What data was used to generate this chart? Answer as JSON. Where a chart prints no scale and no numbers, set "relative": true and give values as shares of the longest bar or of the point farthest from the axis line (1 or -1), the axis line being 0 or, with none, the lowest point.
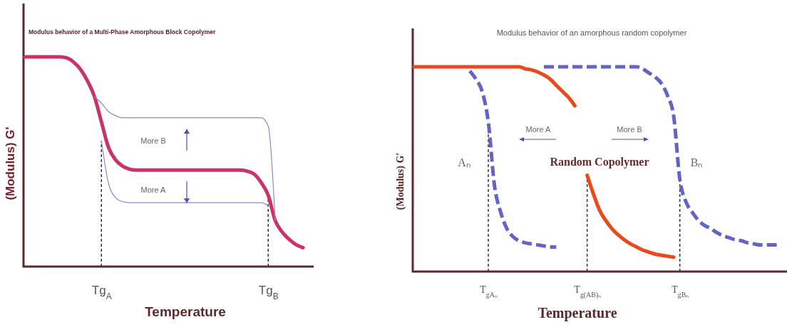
{
  "chart_data": [
    {
      "type": "line",
      "relative": true,
      "title": "Modulus behavior of a Multi-Phase Amorphous Block Copolymer",
      "xlabel": "Temperature",
      "ylabel": "(Modulus) G'",
      "tick_labels": "x",
      "line_style": "solid",
      "marker": "none",
      "categories": [
        null,
        null,
        null,
        null,
        null,
        null,
        null,
        null,
        null,
        null,
        null,
        "Tg$_{A}$",
        null,
        null,
        null,
        null,
        null,
        null,
        null,
        null,
        null,
        null,
        null,
        null,
        null,
        null,
        null,
        null,
        null,
        null,
        null,
        null,
        null,
        null,
        null,
        "Tg$_{B}$",
        null,
        null,
        null,
        null,
        null
      ],
      "series": [
        {
          "color": "#c8336a",
          "values": [
            1,
            1,
            1,
            1,
            1,
            1,
            0.995,
            0.975,
            0.94,
            0.885,
            0.81,
            0.69,
            0.57,
            0.51,
            0.48,
            0.465,
            0.46,
            0.46,
            0.46,
            0.46,
            0.46,
            0.46,
            0.46,
            0.46,
            0.46,
            0.46,
            0.46,
            0.46,
            0.46,
            0.46,
            0.46,
            0.46,
            0.455,
            0.44,
            0.4,
            0.34,
            0.22,
            0.165,
            0.13,
            0.105,
            0.09
          ]
        },
        {
          "color": "#8a8ad0",
          "values": [
            null,
            null,
            null,
            null,
            null,
            null,
            null,
            null,
            null,
            null,
            0.81,
            0.78,
            0.74,
            0.72,
            0.71,
            0.71,
            0.71,
            0.71,
            0.71,
            0.71,
            0.71,
            0.71,
            0.71,
            0.71,
            0.71,
            0.71,
            0.71,
            0.71,
            0.71,
            0.71,
            0.71,
            0.71,
            0.71,
            0.71,
            0.71,
            0.67,
            0.22,
            null,
            null,
            null,
            null
          ]
        },
        {
          "color": "#8a8ad0",
          "values": [
            null,
            null,
            null,
            null,
            null,
            null,
            null,
            null,
            null,
            null,
            null,
            0.6,
            0.4,
            0.33,
            0.31,
            0.305,
            0.305,
            0.305,
            0.305,
            0.305,
            0.305,
            0.305,
            0.305,
            0.305,
            0.305,
            0.305,
            0.305,
            0.305,
            0.305,
            0.305,
            0.305,
            0.305,
            0.305,
            0.305,
            0.305,
            0.29,
            null,
            null,
            null,
            null,
            null
          ]
        }
      ],
      "ref_lines": [
        {
          "axis": "x",
          "value": "Tg$_{A}$",
          "color": "#333333",
          "line_style": "dashed"
        },
        {
          "axis": "x",
          "value": "Tg$_{B}$",
          "color": "#333333",
          "line_style": "dashed"
        }
      ],
      "annotations": [
        "More B",
        "More A"
      ]
    },
    {
      "type": "line",
      "relative": true,
      "title": "Modulus behavior of an amorphous random copolymer",
      "xlabel": "Temperature",
      "ylabel": "(Modulus) G'",
      "tick_labels": "x",
      "marker": "none",
      "categories": [
        null,
        null,
        null,
        null,
        null,
        null,
        null,
        null,
        null,
        null,
        null,
        null,
        "T$_{gAₙ}$",
        null,
        null,
        null,
        null,
        null,
        null,
        null,
        null,
        null,
        null,
        null,
        null,
        null,
        null,
        null,
        "T$_{g(AB)ₙ}$",
        null,
        null,
        null,
        null,
        null,
        null,
        null,
        null,
        null,
        null,
        null,
        null,
        null,
        null,
        "T$_{gBₙ}$",
        null,
        null,
        null,
        null,
        null,
        null,
        null,
        null,
        null,
        null,
        null,
        null,
        null,
        null,
        null,
        null,
        null
      ],
      "series": [
        {
          "name": "Random Copolymer",
          "color": "#e8491d",
          "line_style": "solid",
          "values": [
            1,
            1,
            1,
            1,
            1,
            1,
            1,
            1,
            1,
            1,
            1,
            1,
            1,
            1,
            1,
            1,
            1,
            1,
            0.99,
            0.985,
            0.975,
            0.96,
            0.94,
            0.91,
            0.88,
            0.85,
            0.81,
            null,
            0.47,
            0.38,
            0.3,
            0.25,
            0.21,
            0.18,
            0.155,
            0.135,
            0.12,
            0.105,
            0.095,
            0.085,
            0.08,
            0.075,
            0.07,
            null,
            null,
            null,
            null,
            null,
            null,
            null,
            null,
            null,
            null,
            null,
            null,
            null,
            null,
            null,
            null,
            null,
            null
          ]
        },
        {
          "name": "Aₙ",
          "color": "#6464c8",
          "line_style": "dashed",
          "values": [
            null,
            null,
            null,
            null,
            null,
            null,
            null,
            null,
            null,
            0.98,
            0.94,
            0.88,
            0.73,
            0.42,
            0.29,
            0.21,
            0.17,
            0.15,
            0.14,
            0.135,
            0.13,
            0.125,
            0.12,
            0.12,
            null,
            null,
            null,
            null,
            null,
            null,
            null,
            null,
            null,
            null,
            null,
            null,
            null,
            null,
            null,
            null,
            null,
            null,
            null,
            null,
            null,
            null,
            null,
            null,
            null,
            null,
            null,
            null,
            null,
            null,
            null,
            null,
            null,
            null,
            null,
            null,
            null
          ]
        },
        {
          "name": "Bₙ",
          "color": "#6464c8",
          "line_style": "dashed",
          "values": [
            null,
            null,
            null,
            null,
            null,
            null,
            null,
            null,
            null,
            null,
            null,
            null,
            null,
            null,
            null,
            null,
            null,
            null,
            null,
            null,
            null,
            1,
            1,
            1,
            1,
            1,
            1,
            1,
            1,
            1,
            1,
            1,
            1,
            1,
            1,
            1,
            1,
            0.99,
            0.97,
            0.95,
            0.92,
            0.86,
            0.76,
            0.45,
            0.34,
            0.29,
            0.25,
            0.225,
            0.21,
            0.19,
            0.175,
            0.165,
            0.155,
            0.15,
            0.14,
            0.135,
            0.13,
            0.13,
            0.13,
            0.13,
            null
          ]
        }
      ],
      "ref_lines": [
        {
          "axis": "x",
          "value": "T$_{gAₙ}$",
          "color": "#333333",
          "line_style": "dashed"
        },
        {
          "axis": "x",
          "value": "T$_{g(AB)ₙ}$",
          "color": "#333333",
          "line_style": "dashed"
        },
        {
          "axis": "x",
          "value": "T$_{gBₙ}$",
          "color": "#333333",
          "line_style": "dashed"
        }
      ],
      "annotations": [
        "More A",
        "More B"
      ]
    }
  ]
}
